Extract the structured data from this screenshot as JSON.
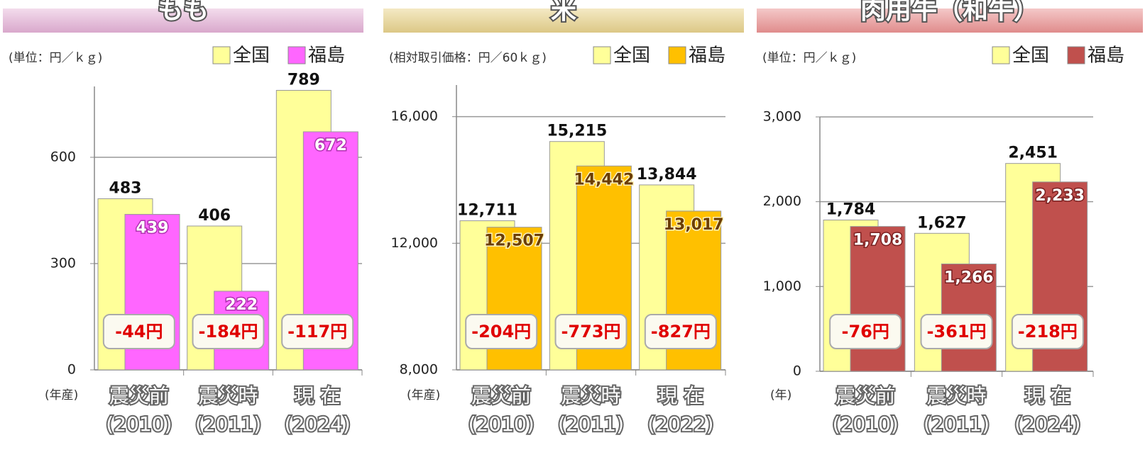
{
  "chart_data": [
    {
      "type": "bar",
      "title": "もも",
      "unit_label": "(単位：円／ｋｇ)",
      "x_label": "(年産)",
      "categories": [
        [
          "震災前",
          "(2010)"
        ],
        [
          "震災時",
          "(2011)"
        ],
        [
          "現 在",
          "(2024)"
        ]
      ],
      "series": [
        {
          "name": "全国",
          "color": "#ffff99",
          "values": [
            483,
            406,
            789
          ]
        },
        {
          "name": "福島",
          "color": "#ff66ff",
          "values": [
            439,
            222,
            672
          ]
        }
      ],
      "ylim": [
        0,
        800
      ],
      "yticks": [
        0,
        300,
        600
      ],
      "grid": true,
      "annotations": [
        "-44円",
        "-184円",
        "-117円"
      ]
    },
    {
      "type": "bar",
      "title": "米",
      "unit_label": "(相対取引価格：円／60ｋｇ)",
      "x_label": "(年産)",
      "categories": [
        [
          "震災前",
          "(2010)"
        ],
        [
          "震災時",
          "(2011)"
        ],
        [
          "現 在",
          "(2022)"
        ]
      ],
      "series": [
        {
          "name": "全国",
          "color": "#ffff99",
          "values": [
            12711,
            15215,
            13844
          ],
          "value_labels": [
            "12,711",
            "15,215",
            "13,844"
          ]
        },
        {
          "name": "福島",
          "color": "#ffc000",
          "values": [
            12507,
            14442,
            13017
          ],
          "value_labels": [
            "12,507",
            "14,442",
            "13,017"
          ]
        }
      ],
      "ylim": [
        8000,
        17000
      ],
      "yticks": [
        {
          "value": 8000,
          "label": "8,000"
        },
        {
          "value": 12000,
          "label": "12,000"
        },
        {
          "value": 16000,
          "label": "16,000"
        }
      ],
      "grid": true,
      "annotations": [
        "-204円",
        "-773円",
        "-827円"
      ]
    },
    {
      "type": "bar",
      "title": "肉用牛（和牛）",
      "unit_label": "(単位：円／ｋｇ)",
      "x_label": "(年)",
      "categories": [
        [
          "震災前",
          "(2010)"
        ],
        [
          "震災時",
          "(2011)"
        ],
        [
          "現 在",
          "(2024)"
        ]
      ],
      "series": [
        {
          "name": "全国",
          "color": "#ffff99",
          "values": [
            1784,
            1627,
            2451
          ],
          "value_labels": [
            "1,784",
            "1,627",
            "2,451"
          ]
        },
        {
          "name": "福島",
          "color": "#c0504d",
          "values": [
            1708,
            1266,
            2233
          ],
          "value_labels": [
            "1,708",
            "1,266",
            "2,233"
          ]
        }
      ],
      "ylim": [
        0,
        3000
      ],
      "yticks": [
        0,
        {
          "value": 1000,
          "label": "1,000"
        },
        {
          "value": 2000,
          "label": "2,000"
        },
        {
          "value": 3000,
          "label": "3,000"
        }
      ],
      "grid": true,
      "annotations": [
        "-76円",
        "-361円",
        "-218円"
      ]
    }
  ]
}
